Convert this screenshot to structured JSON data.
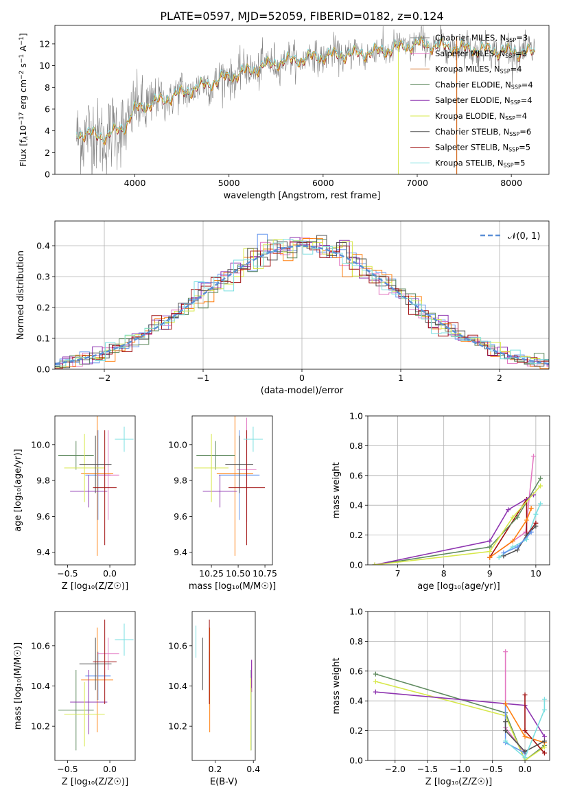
{
  "title": "PLATE=0597, MJD=52059, FIBERID=0182, z=0.124",
  "legend_entries": [
    {
      "label": "Chabrier MILES, N",
      "sub": "SSP",
      "tail": "=3",
      "color": "#7f7f7f"
    },
    {
      "label": "Salpeter MILES, N",
      "sub": "SSP",
      "tail": "=3",
      "color": "#e377c2"
    },
    {
      "label": "Kroupa MILES, N",
      "sub": "SSP",
      "tail": "=4",
      "color": "#d2691e"
    },
    {
      "label": "Chabrier ELODIE, N",
      "sub": "SSP",
      "tail": "=4",
      "color": "#5f8a5f"
    },
    {
      "label": "Salpeter ELODIE, N",
      "sub": "SSP",
      "tail": "=4",
      "color": "#8e35b0"
    },
    {
      "label": "Kroupa ELODIE, N",
      "sub": "SSP",
      "tail": "=4",
      "color": "#d7e84a"
    },
    {
      "label": "Chabrier STELIB, N",
      "sub": "SSP",
      "tail": "=6",
      "color": "#505050"
    },
    {
      "label": "Salpeter STELIB, N",
      "sub": "SSP",
      "tail": "=5",
      "color": "#a01010"
    },
    {
      "label": "Kroupa STELIB, N",
      "sub": "SSP",
      "tail": "=5",
      "color": "#7adfe0"
    }
  ],
  "series_colors": [
    "#6495ed",
    "#e377c2",
    "#ff7f0e",
    "#5f8a5f",
    "#8e35b0",
    "#d7e84a",
    "#505050",
    "#a01010",
    "#7adfe0",
    "#d2691e"
  ],
  "chart_data": [
    {
      "id": "spectrum",
      "type": "line",
      "xlabel": "wavelength [Angstrom, rest frame]",
      "ylabel_parts": [
        "Flux [f",
        "λ",
        "10",
        "−17",
        " erg cm",
        "−2",
        " s",
        "−1",
        " A",
        "−1",
        "]"
      ],
      "xlim": [
        3150,
        8400
      ],
      "ylim": [
        0,
        13.7
      ],
      "xticks": [
        4000,
        5000,
        6000,
        7000,
        8000
      ],
      "yticks": [
        0,
        2,
        4,
        6,
        8,
        10,
        12
      ],
      "x_range": [
        3380,
        8250
      ],
      "anchors_x": [
        3400,
        3700,
        3900,
        4000,
        4500,
        5000,
        5500,
        6000,
        6500,
        7000,
        7500,
        8000,
        8250
      ],
      "anchors_y": [
        3.8,
        3.5,
        4.5,
        6.0,
        7.5,
        9.0,
        10.3,
        10.9,
        11.2,
        12.0,
        11.6,
        11.3,
        11.2
      ]
    },
    {
      "id": "residuals",
      "type": "histogram",
      "xlabel": "(data-model)/error",
      "ylabel": "Normed distribution",
      "xlim": [
        -2.5,
        2.5
      ],
      "ylim": [
        0,
        0.48
      ],
      "xticks": [
        -2,
        -1,
        0,
        1,
        2
      ],
      "xtick_labels": [
        "−2",
        "−1",
        "0",
        "1",
        "2"
      ],
      "yticks": [
        0.0,
        0.1,
        0.2,
        0.3,
        0.4
      ],
      "bin_width": 0.1,
      "reference_label": "𝒩(0, 1)",
      "reference_color": "#5b8fd6"
    },
    {
      "id": "age-vs-Z",
      "type": "errorbar",
      "xlabel": "Z [log₁₀(Z/Z☉)]",
      "ylabel": "age  [log₁₀(age/yr)]",
      "xlim": [
        -0.65,
        0.3
      ],
      "ylim": [
        9.33,
        10.16
      ],
      "xticks": [
        -0.5,
        0.0
      ],
      "xtick_labels": [
        "−0.5",
        "0.0"
      ],
      "yticks": [
        9.4,
        9.6,
        9.8,
        10.0
      ],
      "points": [
        {
          "x": -0.14,
          "y": 9.83,
          "xerr": 0.15,
          "yerr": 0.25,
          "c": 0
        },
        {
          "x": -0.02,
          "y": 9.83,
          "xerr": 0.13,
          "yerr": 0.25,
          "c": 1
        },
        {
          "x": -0.15,
          "y": 9.84,
          "xerr": 0.19,
          "yerr": 0.46,
          "c": 2
        },
        {
          "x": -0.4,
          "y": 9.94,
          "xerr": 0.21,
          "yerr": 0.08,
          "c": 3
        },
        {
          "x": -0.25,
          "y": 9.74,
          "xerr": 0.22,
          "yerr": 0.09,
          "c": 4
        },
        {
          "x": -0.3,
          "y": 9.87,
          "xerr": 0.24,
          "yerr": 0.19,
          "c": 5
        },
        {
          "x": -0.17,
          "y": 9.89,
          "xerr": 0.19,
          "yerr": 0.16,
          "c": 6
        },
        {
          "x": -0.06,
          "y": 9.76,
          "xerr": 0.14,
          "yerr": 0.32,
          "c": 7
        },
        {
          "x": 0.17,
          "y": 10.03,
          "xerr": 0.11,
          "yerr": 0.07,
          "c": 8
        }
      ]
    },
    {
      "id": "age-vs-mass",
      "type": "errorbar",
      "xlabel": "mass [log₁₀(M/M☉)]",
      "ylabel": "",
      "xlim": [
        10.07,
        10.82
      ],
      "ylim": [
        9.33,
        10.16
      ],
      "xticks": [
        10.25,
        10.5,
        10.75
      ],
      "xtick_labels": [
        "10.25",
        "10.50",
        "10.75"
      ],
      "yticks": [
        9.4,
        9.6,
        9.8,
        10.0
      ],
      "points": [
        {
          "x": 10.51,
          "y": 9.83,
          "xerr": 0.19,
          "yerr": 0.25,
          "c": 0
        },
        {
          "x": 10.58,
          "y": 9.86,
          "xerr": 0.09,
          "yerr": 0.29,
          "c": 1
        },
        {
          "x": 10.47,
          "y": 9.84,
          "xerr": 0.17,
          "yerr": 0.46,
          "c": 2
        },
        {
          "x": 10.29,
          "y": 9.94,
          "xerr": 0.18,
          "yerr": 0.08,
          "c": 3
        },
        {
          "x": 10.33,
          "y": 9.74,
          "xerr": 0.16,
          "yerr": 0.09,
          "c": 4
        },
        {
          "x": 10.25,
          "y": 9.87,
          "xerr": 0.16,
          "yerr": 0.19,
          "c": 5
        },
        {
          "x": 10.51,
          "y": 9.89,
          "xerr": 0.13,
          "yerr": 0.16,
          "c": 6
        },
        {
          "x": 10.58,
          "y": 9.76,
          "xerr": 0.17,
          "yerr": 0.32,
          "c": 7
        },
        {
          "x": 10.64,
          "y": 10.03,
          "xerr": 0.09,
          "yerr": 0.07,
          "c": 8
        }
      ]
    },
    {
      "id": "weight-vs-age",
      "type": "line",
      "xlabel": "age  [log₁₀(age/yr)]",
      "ylabel": "mass weight",
      "xlim": [
        6.35,
        10.3
      ],
      "ylim": [
        0,
        1.0
      ],
      "xticks": [
        7,
        8,
        9,
        10
      ],
      "yticks": [
        0.0,
        0.2,
        0.4,
        0.6,
        0.8,
        1.0
      ],
      "series": [
        {
          "c": 1,
          "x": [
            9.0,
            9.78,
            9.95
          ],
          "y": [
            0.05,
            0.22,
            0.73
          ]
        },
        {
          "c": 8,
          "x": [
            9.2,
            9.5,
            9.8,
            10.0,
            10.1
          ],
          "y": [
            0.05,
            0.12,
            0.17,
            0.34,
            0.41
          ]
        },
        {
          "c": 7,
          "x": [
            9.0,
            9.8,
            9.8,
            10.0
          ],
          "y": [
            0.05,
            0.44,
            0.2,
            0.28
          ]
        },
        {
          "c": 3,
          "x": [
            6.5,
            9.0,
            9.6,
            10.1
          ],
          "y": [
            0.0,
            0.12,
            0.32,
            0.58
          ]
        },
        {
          "c": 4,
          "x": [
            6.5,
            9.0,
            9.4,
            9.95
          ],
          "y": [
            0.0,
            0.16,
            0.37,
            0.47
          ]
        },
        {
          "c": 5,
          "x": [
            6.5,
            9.0,
            9.5,
            10.1
          ],
          "y": [
            0.0,
            0.09,
            0.32,
            0.53
          ]
        },
        {
          "c": 2,
          "x": [
            9.0,
            9.5,
            9.8,
            9.9
          ],
          "y": [
            0.05,
            0.16,
            0.3,
            0.38
          ]
        },
        {
          "c": 6,
          "x": [
            9.3,
            9.6,
            9.8,
            10.0
          ],
          "y": [
            0.06,
            0.1,
            0.2,
            0.26
          ]
        },
        {
          "c": 0,
          "x": [
            9.3,
            9.6,
            9.9
          ],
          "y": [
            0.08,
            0.12,
            0.22
          ]
        }
      ]
    },
    {
      "id": "mass-vs-Z",
      "type": "errorbar",
      "xlabel": "Z [log₁₀(Z/Z☉)]",
      "ylabel": "mass [log₁₀(M/M☉)]",
      "xlim": [
        -0.65,
        0.3
      ],
      "ylim": [
        10.03,
        10.77
      ],
      "xticks": [
        -0.5,
        0.0
      ],
      "xtick_labels": [
        "−0.5",
        "0.0"
      ],
      "yticks": [
        10.2,
        10.4,
        10.6
      ],
      "points": [
        {
          "x": -0.14,
          "y": 10.45,
          "xerr": 0.15,
          "yerr": 0.12,
          "c": 0
        },
        {
          "x": -0.02,
          "y": 10.56,
          "xerr": 0.13,
          "yerr": 0.08,
          "c": 1
        },
        {
          "x": -0.15,
          "y": 10.43,
          "xerr": 0.19,
          "yerr": 0.26,
          "c": 2
        },
        {
          "x": -0.4,
          "y": 10.28,
          "xerr": 0.21,
          "yerr": 0.2,
          "c": 3
        },
        {
          "x": -0.25,
          "y": 10.32,
          "xerr": 0.22,
          "yerr": 0.16,
          "c": 4
        },
        {
          "x": -0.3,
          "y": 10.26,
          "xerr": 0.24,
          "yerr": 0.16,
          "c": 5
        },
        {
          "x": -0.17,
          "y": 10.51,
          "xerr": 0.19,
          "yerr": 0.13,
          "c": 6
        },
        {
          "x": -0.06,
          "y": 10.52,
          "xerr": 0.14,
          "yerr": 0.21,
          "c": 7
        },
        {
          "x": 0.17,
          "y": 10.63,
          "xerr": 0.11,
          "yerr": 0.08,
          "c": 8
        }
      ]
    },
    {
      "id": "mass-vs-EBV",
      "type": "errorbar",
      "xlabel": "E(B-V)",
      "ylabel": "",
      "xlim": [
        0.08,
        0.41
      ],
      "ylim": [
        10.03,
        10.77
      ],
      "xticks": [
        0.2,
        0.4
      ],
      "xtick_labels": [
        "0.2",
        "0.4"
      ],
      "yticks": [
        10.2,
        10.4,
        10.6
      ],
      "points": [
        {
          "x": 0.17,
          "y": 10.45,
          "xerr": 0.0,
          "yerr": 0.12,
          "c": 0
        },
        {
          "x": 0.392,
          "y": 10.45,
          "xerr": 0.0,
          "yerr": 0.08,
          "c": 1
        },
        {
          "x": 0.172,
          "y": 10.43,
          "xerr": 0.0,
          "yerr": 0.26,
          "c": 2
        },
        {
          "x": 0.388,
          "y": 10.28,
          "xerr": 0.0,
          "yerr": 0.2,
          "c": 3
        },
        {
          "x": 0.39,
          "y": 10.46,
          "xerr": 0.0,
          "yerr": 0.07,
          "c": 4
        },
        {
          "x": 0.387,
          "y": 10.26,
          "xerr": 0.0,
          "yerr": 0.18,
          "c": 5
        },
        {
          "x": 0.135,
          "y": 10.51,
          "xerr": 0.0,
          "yerr": 0.13,
          "c": 6
        },
        {
          "x": 0.17,
          "y": 10.52,
          "xerr": 0.0,
          "yerr": 0.21,
          "c": 7
        },
        {
          "x": 0.1,
          "y": 10.62,
          "xerr": 0.0,
          "yerr": 0.08,
          "c": 8
        }
      ]
    },
    {
      "id": "weight-vs-Z",
      "type": "line",
      "xlabel": "Z [log₁₀(Z/Z☉)]",
      "ylabel": "mass weight",
      "xlim": [
        -2.42,
        0.38
      ],
      "ylim": [
        0,
        1.0
      ],
      "xticks": [
        -2.0,
        -1.5,
        -1.0,
        -0.5,
        0.0
      ],
      "xtick_labels": [
        "−2.0",
        "−1.5",
        "−1.0",
        "−0.5",
        "0.0"
      ],
      "yticks": [
        0.0,
        0.2,
        0.4,
        0.6,
        0.8,
        1.0
      ],
      "series": [
        {
          "c": 3,
          "x": [
            -2.3,
            -0.3,
            0.0,
            0.3
          ],
          "y": [
            0.58,
            0.32,
            0.0,
            0.1
          ]
        },
        {
          "c": 5,
          "x": [
            -2.3,
            -0.3,
            0.0,
            0.3
          ],
          "y": [
            0.53,
            0.3,
            0.0,
            0.09
          ]
        },
        {
          "c": 4,
          "x": [
            -2.3,
            0.0,
            0.3
          ],
          "y": [
            0.46,
            0.37,
            0.16
          ]
        },
        {
          "c": 1,
          "x": [
            -0.3,
            -0.3,
            0.0
          ],
          "y": [
            0.73,
            0.22,
            0.05
          ]
        },
        {
          "c": 0,
          "x": [
            -0.3,
            -0.3,
            0.0
          ],
          "y": [
            0.38,
            0.12,
            0.05
          ]
        },
        {
          "c": 2,
          "x": [
            -0.3,
            0.0,
            0.3
          ],
          "y": [
            0.38,
            0.16,
            0.12
          ]
        },
        {
          "c": 7,
          "x": [
            0.0,
            0.0,
            0.3
          ],
          "y": [
            0.44,
            0.2,
            0.05
          ]
        },
        {
          "c": 6,
          "x": [
            -0.3,
            -0.3,
            0.0,
            0.3
          ],
          "y": [
            0.26,
            0.2,
            0.06,
            0.13
          ]
        },
        {
          "c": 8,
          "x": [
            -0.3,
            0.0,
            0.3,
            0.3
          ],
          "y": [
            0.13,
            0.02,
            0.34,
            0.41
          ]
        }
      ]
    }
  ]
}
